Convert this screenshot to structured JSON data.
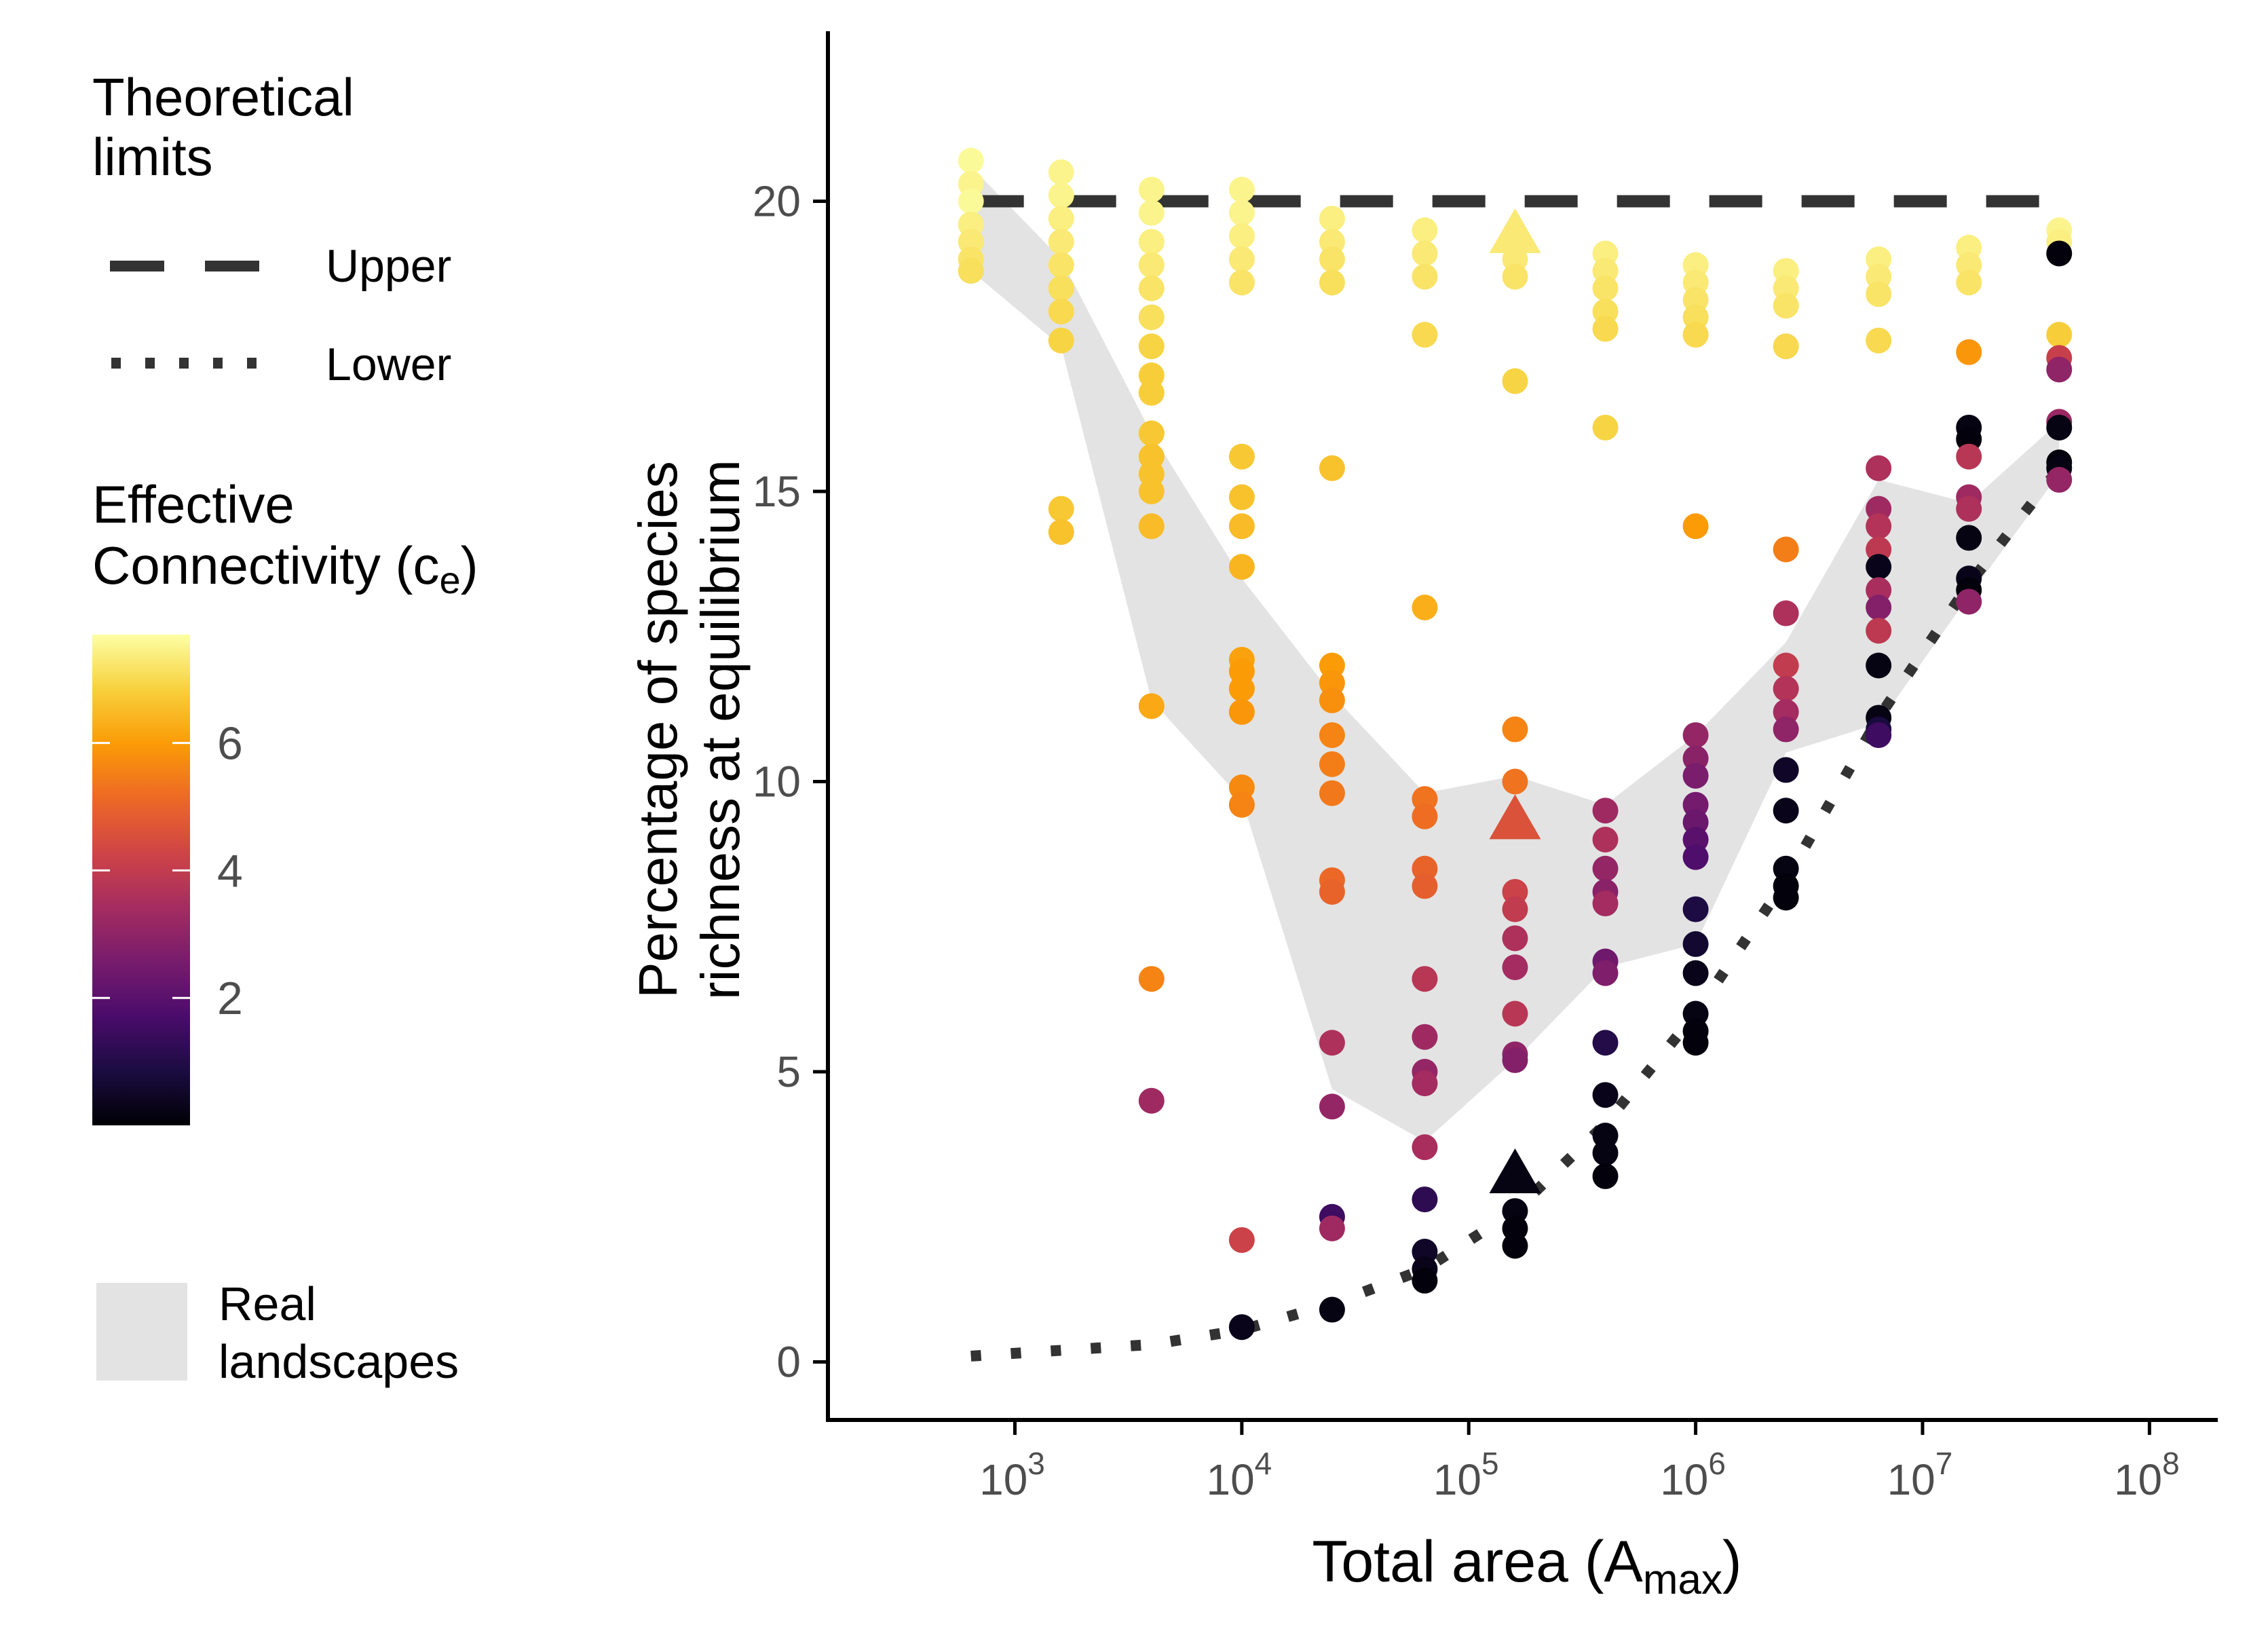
{
  "chart_data": {
    "type": "scatter",
    "x_scale": "log10",
    "xlim": [
      150,
      200000000
    ],
    "ylim": [
      -1,
      23
    ],
    "xlabel_main": "Total area (A",
    "xlabel_sub": "max",
    "xlabel_close": ")",
    "ylabel_line1": "Percentage of species",
    "ylabel_line2": "richness at equilibrium",
    "x_ticks": [
      {
        "value": 1000,
        "base": "10",
        "exp": "3"
      },
      {
        "value": 10000,
        "base": "10",
        "exp": "4"
      },
      {
        "value": 100000,
        "base": "10",
        "exp": "5"
      },
      {
        "value": 1000000,
        "base": "10",
        "exp": "6"
      },
      {
        "value": 10000000,
        "base": "10",
        "exp": "7"
      },
      {
        "value": 100000000,
        "base": "10",
        "exp": "8"
      }
    ],
    "y_ticks": [
      {
        "value": 0,
        "label": "0"
      },
      {
        "value": 5,
        "label": "5"
      },
      {
        "value": 10,
        "label": "10"
      },
      {
        "value": 15,
        "label": "15"
      },
      {
        "value": 20,
        "label": "20"
      }
    ],
    "grid": false,
    "legend": {
      "limits_title_line1": "Theoretical",
      "limits_title_line2": "limits",
      "upper_label": "Upper",
      "lower_label": "Lower",
      "connectivity_title_line1": "Effective",
      "connectivity_title_line2": "Connectivity (c",
      "connectivity_title_sub": "e",
      "connectivity_title_close": ")",
      "colorbar_ticks": [
        {
          "value": 2,
          "label": "2"
        },
        {
          "value": 4,
          "label": "4"
        },
        {
          "value": 6,
          "label": "6"
        }
      ],
      "colorbar_range": [
        0,
        7.7
      ],
      "real_line1": "Real",
      "real_line2": "landscapes"
    },
    "colors": {
      "upper_line": "#333333",
      "lower_line": "#333333",
      "band_fill": "#e3e3e3",
      "axis": "#000000",
      "tick_label": "#4d4d4d",
      "colormap": [
        "#000004",
        "#1b0c41",
        "#4a0c6b",
        "#781c6d",
        "#a52c60",
        "#cf4446",
        "#ed6925",
        "#fb9b06",
        "#f7d13d",
        "#fcffa4"
      ]
    },
    "upper_limit": {
      "y": 20,
      "x_range": [
        640,
        40000000
      ]
    },
    "lower_limit": [
      [
        640,
        0.1
      ],
      [
        1600,
        0.2
      ],
      [
        4000,
        0.3
      ],
      [
        10000,
        0.55
      ],
      [
        25000,
        1.0
      ],
      [
        64000,
        1.6
      ],
      [
        160000,
        2.6
      ],
      [
        400000,
        4.1
      ],
      [
        1000000,
        6.0
      ],
      [
        2500000,
        8.3
      ],
      [
        6400000,
        11.1
      ],
      [
        16000000,
        13.4
      ],
      [
        40000000,
        15.4
      ]
    ],
    "real_landscapes_band": {
      "upper": [
        [
          640,
          20.6
        ],
        [
          1600,
          19.0
        ],
        [
          4000,
          16.0
        ],
        [
          10000,
          13.5
        ],
        [
          25000,
          11.5
        ],
        [
          64000,
          9.8
        ],
        [
          160000,
          10.1
        ],
        [
          400000,
          9.6
        ],
        [
          1000000,
          10.8
        ],
        [
          2500000,
          12.4
        ],
        [
          6400000,
          15.2
        ],
        [
          16000000,
          14.8
        ],
        [
          40000000,
          16.2
        ]
      ],
      "lower": [
        [
          640,
          18.8
        ],
        [
          1600,
          17.5
        ],
        [
          4000,
          11.4
        ],
        [
          10000,
          9.7
        ],
        [
          25000,
          4.7
        ],
        [
          64000,
          3.8
        ],
        [
          160000,
          5.2
        ],
        [
          400000,
          6.8
        ],
        [
          1000000,
          7.2
        ],
        [
          2500000,
          10.5
        ],
        [
          6400000,
          11.0
        ],
        [
          16000000,
          13.2
        ],
        [
          40000000,
          15.3
        ]
      ]
    },
    "points": [
      {
        "x": 640,
        "y": 20.7,
        "c": 7.6
      },
      {
        "x": 640,
        "y": 20.3,
        "c": 7.5
      },
      {
        "x": 640,
        "y": 20.0,
        "c": 7.6
      },
      {
        "x": 640,
        "y": 19.6,
        "c": 7.4
      },
      {
        "x": 640,
        "y": 19.3,
        "c": 7.3
      },
      {
        "x": 640,
        "y": 19.0,
        "c": 7.2
      },
      {
        "x": 640,
        "y": 18.8,
        "c": 7.1
      },
      {
        "x": 1600,
        "y": 20.5,
        "c": 7.5
      },
      {
        "x": 1600,
        "y": 20.1,
        "c": 7.5
      },
      {
        "x": 1600,
        "y": 19.7,
        "c": 7.4
      },
      {
        "x": 1600,
        "y": 19.3,
        "c": 7.3
      },
      {
        "x": 1600,
        "y": 18.9,
        "c": 7.2
      },
      {
        "x": 1600,
        "y": 18.5,
        "c": 7.1
      },
      {
        "x": 1600,
        "y": 18.1,
        "c": 7.0
      },
      {
        "x": 1600,
        "y": 17.6,
        "c": 6.9
      },
      {
        "x": 1600,
        "y": 14.7,
        "c": 6.7
      },
      {
        "x": 1600,
        "y": 14.3,
        "c": 6.6
      },
      {
        "x": 4000,
        "y": 20.2,
        "c": 7.5
      },
      {
        "x": 4000,
        "y": 19.8,
        "c": 7.5
      },
      {
        "x": 4000,
        "y": 19.3,
        "c": 7.4
      },
      {
        "x": 4000,
        "y": 18.9,
        "c": 7.3
      },
      {
        "x": 4000,
        "y": 18.5,
        "c": 7.2
      },
      {
        "x": 4000,
        "y": 18.0,
        "c": 7.1
      },
      {
        "x": 4000,
        "y": 17.5,
        "c": 6.9
      },
      {
        "x": 4000,
        "y": 17.0,
        "c": 6.8
      },
      {
        "x": 4000,
        "y": 16.7,
        "c": 6.8
      },
      {
        "x": 4000,
        "y": 16.0,
        "c": 6.7
      },
      {
        "x": 4000,
        "y": 15.6,
        "c": 6.6
      },
      {
        "x": 4000,
        "y": 15.3,
        "c": 6.6
      },
      {
        "x": 4000,
        "y": 15.0,
        "c": 6.6
      },
      {
        "x": 4000,
        "y": 14.4,
        "c": 6.5
      },
      {
        "x": 4000,
        "y": 11.3,
        "c": 6.2
      },
      {
        "x": 4000,
        "y": 6.6,
        "c": 5.6
      },
      {
        "x": 4000,
        "y": 4.5,
        "c": 3.3
      },
      {
        "x": 10000,
        "y": 20.2,
        "c": 7.5
      },
      {
        "x": 10000,
        "y": 19.8,
        "c": 7.5
      },
      {
        "x": 10000,
        "y": 19.4,
        "c": 7.4
      },
      {
        "x": 10000,
        "y": 19.0,
        "c": 7.3
      },
      {
        "x": 10000,
        "y": 18.6,
        "c": 7.2
      },
      {
        "x": 10000,
        "y": 15.6,
        "c": 6.7
      },
      {
        "x": 10000,
        "y": 14.9,
        "c": 6.6
      },
      {
        "x": 10000,
        "y": 14.4,
        "c": 6.5
      },
      {
        "x": 10000,
        "y": 13.7,
        "c": 6.4
      },
      {
        "x": 10000,
        "y": 12.1,
        "c": 6.1
      },
      {
        "x": 10000,
        "y": 11.9,
        "c": 6.0
      },
      {
        "x": 10000,
        "y": 11.6,
        "c": 6.0
      },
      {
        "x": 10000,
        "y": 11.2,
        "c": 5.9
      },
      {
        "x": 10000,
        "y": 9.9,
        "c": 5.7
      },
      {
        "x": 10000,
        "y": 9.6,
        "c": 5.6
      },
      {
        "x": 10000,
        "y": 2.1,
        "c": 4.2
      },
      {
        "x": 10000,
        "y": 0.6,
        "c": 0.3
      },
      {
        "x": 25000,
        "y": 19.7,
        "c": 7.4
      },
      {
        "x": 25000,
        "y": 19.3,
        "c": 7.3
      },
      {
        "x": 25000,
        "y": 19.0,
        "c": 7.2
      },
      {
        "x": 25000,
        "y": 18.6,
        "c": 7.1
      },
      {
        "x": 25000,
        "y": 15.4,
        "c": 6.6
      },
      {
        "x": 25000,
        "y": 12.0,
        "c": 6.0
      },
      {
        "x": 25000,
        "y": 11.7,
        "c": 5.9
      },
      {
        "x": 25000,
        "y": 11.4,
        "c": 5.8
      },
      {
        "x": 25000,
        "y": 10.8,
        "c": 5.6
      },
      {
        "x": 25000,
        "y": 10.3,
        "c": 5.5
      },
      {
        "x": 25000,
        "y": 9.8,
        "c": 5.4
      },
      {
        "x": 25000,
        "y": 8.3,
        "c": 5.1
      },
      {
        "x": 25000,
        "y": 8.1,
        "c": 5.0
      },
      {
        "x": 25000,
        "y": 5.5,
        "c": 3.6
      },
      {
        "x": 25000,
        "y": 4.4,
        "c": 3.1
      },
      {
        "x": 25000,
        "y": 2.5,
        "c": 1.5
      },
      {
        "x": 25000,
        "y": 2.3,
        "c": 3.3
      },
      {
        "x": 25000,
        "y": 0.9,
        "c": 0.2
      },
      {
        "x": 64000,
        "y": 19.5,
        "c": 7.4
      },
      {
        "x": 64000,
        "y": 19.1,
        "c": 7.3
      },
      {
        "x": 64000,
        "y": 18.7,
        "c": 7.2
      },
      {
        "x": 64000,
        "y": 17.7,
        "c": 7.0
      },
      {
        "x": 64000,
        "y": 13.0,
        "c": 6.3
      },
      {
        "x": 64000,
        "y": 9.7,
        "c": 5.3
      },
      {
        "x": 64000,
        "y": 9.4,
        "c": 5.2
      },
      {
        "x": 64000,
        "y": 8.5,
        "c": 5.0
      },
      {
        "x": 64000,
        "y": 8.2,
        "c": 4.9
      },
      {
        "x": 64000,
        "y": 6.6,
        "c": 3.8
      },
      {
        "x": 64000,
        "y": 5.6,
        "c": 3.3
      },
      {
        "x": 64000,
        "y": 5.0,
        "c": 3.1
      },
      {
        "x": 64000,
        "y": 4.8,
        "c": 3.4
      },
      {
        "x": 64000,
        "y": 3.7,
        "c": 3.5
      },
      {
        "x": 64000,
        "y": 2.8,
        "c": 1.2
      },
      {
        "x": 64000,
        "y": 1.9,
        "c": 0.5
      },
      {
        "x": 64000,
        "y": 1.6,
        "c": 0.3
      },
      {
        "x": 64000,
        "y": 1.4,
        "c": 0.1
      },
      {
        "x": 160000,
        "y": 19.3,
        "c": 7.4
      },
      {
        "x": 160000,
        "y": 19.0,
        "c": 7.3
      },
      {
        "x": 160000,
        "y": 18.7,
        "c": 7.2
      },
      {
        "x": 160000,
        "y": 16.9,
        "c": 6.9
      },
      {
        "x": 160000,
        "y": 10.9,
        "c": 5.6
      },
      {
        "x": 160000,
        "y": 10.0,
        "c": 5.3
      },
      {
        "x": 160000,
        "y": 8.1,
        "c": 4.2
      },
      {
        "x": 160000,
        "y": 7.8,
        "c": 4.0
      },
      {
        "x": 160000,
        "y": 7.3,
        "c": 3.6
      },
      {
        "x": 160000,
        "y": 6.8,
        "c": 3.4
      },
      {
        "x": 160000,
        "y": 6.0,
        "c": 3.8
      },
      {
        "x": 160000,
        "y": 5.3,
        "c": 3.0
      },
      {
        "x": 160000,
        "y": 5.2,
        "c": 2.8
      },
      {
        "x": 160000,
        "y": 2.6,
        "c": 0.2
      },
      {
        "x": 160000,
        "y": 2.3,
        "c": 0.1
      },
      {
        "x": 160000,
        "y": 2.0,
        "c": 0.1
      },
      {
        "x": 400000,
        "y": 19.1,
        "c": 7.4
      },
      {
        "x": 400000,
        "y": 18.8,
        "c": 7.3
      },
      {
        "x": 400000,
        "y": 18.5,
        "c": 7.2
      },
      {
        "x": 400000,
        "y": 18.1,
        "c": 7.1
      },
      {
        "x": 400000,
        "y": 17.8,
        "c": 7.0
      },
      {
        "x": 400000,
        "y": 16.1,
        "c": 6.9
      },
      {
        "x": 400000,
        "y": 9.5,
        "c": 3.3
      },
      {
        "x": 400000,
        "y": 9.0,
        "c": 3.6
      },
      {
        "x": 400000,
        "y": 8.5,
        "c": 3.1
      },
      {
        "x": 400000,
        "y": 8.1,
        "c": 2.9
      },
      {
        "x": 400000,
        "y": 7.9,
        "c": 3.4
      },
      {
        "x": 400000,
        "y": 6.9,
        "c": 2.4
      },
      {
        "x": 400000,
        "y": 6.7,
        "c": 2.7
      },
      {
        "x": 400000,
        "y": 5.5,
        "c": 1.0
      },
      {
        "x": 400000,
        "y": 4.6,
        "c": 0.3
      },
      {
        "x": 400000,
        "y": 3.9,
        "c": 0.2
      },
      {
        "x": 400000,
        "y": 3.6,
        "c": 0.2
      },
      {
        "x": 400000,
        "y": 3.2,
        "c": 0.1
      },
      {
        "x": 1000000,
        "y": 18.9,
        "c": 7.4
      },
      {
        "x": 1000000,
        "y": 18.6,
        "c": 7.3
      },
      {
        "x": 1000000,
        "y": 18.3,
        "c": 7.2
      },
      {
        "x": 1000000,
        "y": 18.0,
        "c": 7.1
      },
      {
        "x": 1000000,
        "y": 17.7,
        "c": 7.0
      },
      {
        "x": 1000000,
        "y": 14.4,
        "c": 6.0
      },
      {
        "x": 1000000,
        "y": 10.8,
        "c": 3.1
      },
      {
        "x": 1000000,
        "y": 10.4,
        "c": 2.9
      },
      {
        "x": 1000000,
        "y": 10.1,
        "c": 2.6
      },
      {
        "x": 1000000,
        "y": 9.6,
        "c": 2.5
      },
      {
        "x": 1000000,
        "y": 9.3,
        "c": 2.3
      },
      {
        "x": 1000000,
        "y": 9.0,
        "c": 2.0
      },
      {
        "x": 1000000,
        "y": 8.7,
        "c": 1.8
      },
      {
        "x": 1000000,
        "y": 7.8,
        "c": 0.9
      },
      {
        "x": 1000000,
        "y": 7.2,
        "c": 0.6
      },
      {
        "x": 1000000,
        "y": 6.7,
        "c": 0.3
      },
      {
        "x": 1000000,
        "y": 6.0,
        "c": 0.2
      },
      {
        "x": 1000000,
        "y": 5.7,
        "c": 0.1
      },
      {
        "x": 1000000,
        "y": 5.5,
        "c": 0.1
      },
      {
        "x": 2500000,
        "y": 18.8,
        "c": 7.4
      },
      {
        "x": 2500000,
        "y": 18.5,
        "c": 7.3
      },
      {
        "x": 2500000,
        "y": 18.2,
        "c": 7.2
      },
      {
        "x": 2500000,
        "y": 17.5,
        "c": 7.0
      },
      {
        "x": 2500000,
        "y": 14.0,
        "c": 5.5
      },
      {
        "x": 2500000,
        "y": 12.9,
        "c": 3.6
      },
      {
        "x": 2500000,
        "y": 12.0,
        "c": 4.0
      },
      {
        "x": 2500000,
        "y": 11.6,
        "c": 3.7
      },
      {
        "x": 2500000,
        "y": 11.2,
        "c": 3.4
      },
      {
        "x": 2500000,
        "y": 10.9,
        "c": 3.0
      },
      {
        "x": 2500000,
        "y": 10.2,
        "c": 0.5
      },
      {
        "x": 2500000,
        "y": 9.5,
        "c": 0.3
      },
      {
        "x": 2500000,
        "y": 8.5,
        "c": 0.2
      },
      {
        "x": 2500000,
        "y": 8.2,
        "c": 0.1
      },
      {
        "x": 2500000,
        "y": 8.0,
        "c": 0.1
      },
      {
        "x": 6400000,
        "y": 19.0,
        "c": 7.4
      },
      {
        "x": 6400000,
        "y": 18.7,
        "c": 7.3
      },
      {
        "x": 6400000,
        "y": 18.4,
        "c": 7.2
      },
      {
        "x": 6400000,
        "y": 17.6,
        "c": 7.0
      },
      {
        "x": 6400000,
        "y": 15.4,
        "c": 3.6
      },
      {
        "x": 6400000,
        "y": 14.7,
        "c": 3.3
      },
      {
        "x": 6400000,
        "y": 14.4,
        "c": 3.7
      },
      {
        "x": 6400000,
        "y": 14.0,
        "c": 3.9
      },
      {
        "x": 6400000,
        "y": 13.7,
        "c": 0.3
      },
      {
        "x": 6400000,
        "y": 13.3,
        "c": 3.5
      },
      {
        "x": 6400000,
        "y": 13.0,
        "c": 2.8
      },
      {
        "x": 6400000,
        "y": 12.6,
        "c": 3.9
      },
      {
        "x": 6400000,
        "y": 12.0,
        "c": 0.2
      },
      {
        "x": 6400000,
        "y": 11.1,
        "c": 0.2
      },
      {
        "x": 6400000,
        "y": 10.9,
        "c": 0.8
      },
      {
        "x": 6400000,
        "y": 10.8,
        "c": 1.5
      },
      {
        "x": 16000000,
        "y": 19.2,
        "c": 7.4
      },
      {
        "x": 16000000,
        "y": 18.9,
        "c": 7.3
      },
      {
        "x": 16000000,
        "y": 18.6,
        "c": 7.2
      },
      {
        "x": 16000000,
        "y": 17.4,
        "c": 5.9
      },
      {
        "x": 16000000,
        "y": 16.1,
        "c": 0.2
      },
      {
        "x": 16000000,
        "y": 15.9,
        "c": 0.1
      },
      {
        "x": 16000000,
        "y": 15.6,
        "c": 3.8
      },
      {
        "x": 16000000,
        "y": 14.9,
        "c": 3.3
      },
      {
        "x": 16000000,
        "y": 14.7,
        "c": 3.6
      },
      {
        "x": 16000000,
        "y": 14.2,
        "c": 0.2
      },
      {
        "x": 16000000,
        "y": 13.5,
        "c": 0.3
      },
      {
        "x": 16000000,
        "y": 13.3,
        "c": 0.1
      },
      {
        "x": 16000000,
        "y": 13.1,
        "c": 3.0
      },
      {
        "x": 40000000,
        "y": 19.5,
        "c": 7.5
      },
      {
        "x": 40000000,
        "y": 19.3,
        "c": 7.4
      },
      {
        "x": 40000000,
        "y": 19.1,
        "c": 0.1
      },
      {
        "x": 40000000,
        "y": 17.7,
        "c": 6.8
      },
      {
        "x": 40000000,
        "y": 17.3,
        "c": 4.1
      },
      {
        "x": 40000000,
        "y": 17.1,
        "c": 3.0
      },
      {
        "x": 40000000,
        "y": 16.2,
        "c": 3.2
      },
      {
        "x": 40000000,
        "y": 16.1,
        "c": 0.2
      },
      {
        "x": 40000000,
        "y": 15.5,
        "c": 0.1
      },
      {
        "x": 40000000,
        "y": 15.4,
        "c": 0.2
      },
      {
        "x": 40000000,
        "y": 15.2,
        "c": 3.1
      }
    ],
    "triangles": [
      {
        "x": 160000,
        "y": 19.4,
        "c": 7.3
      },
      {
        "x": 160000,
        "y": 9.3,
        "c": 4.6
      },
      {
        "x": 160000,
        "y": 3.2,
        "c": 0.2
      }
    ]
  }
}
